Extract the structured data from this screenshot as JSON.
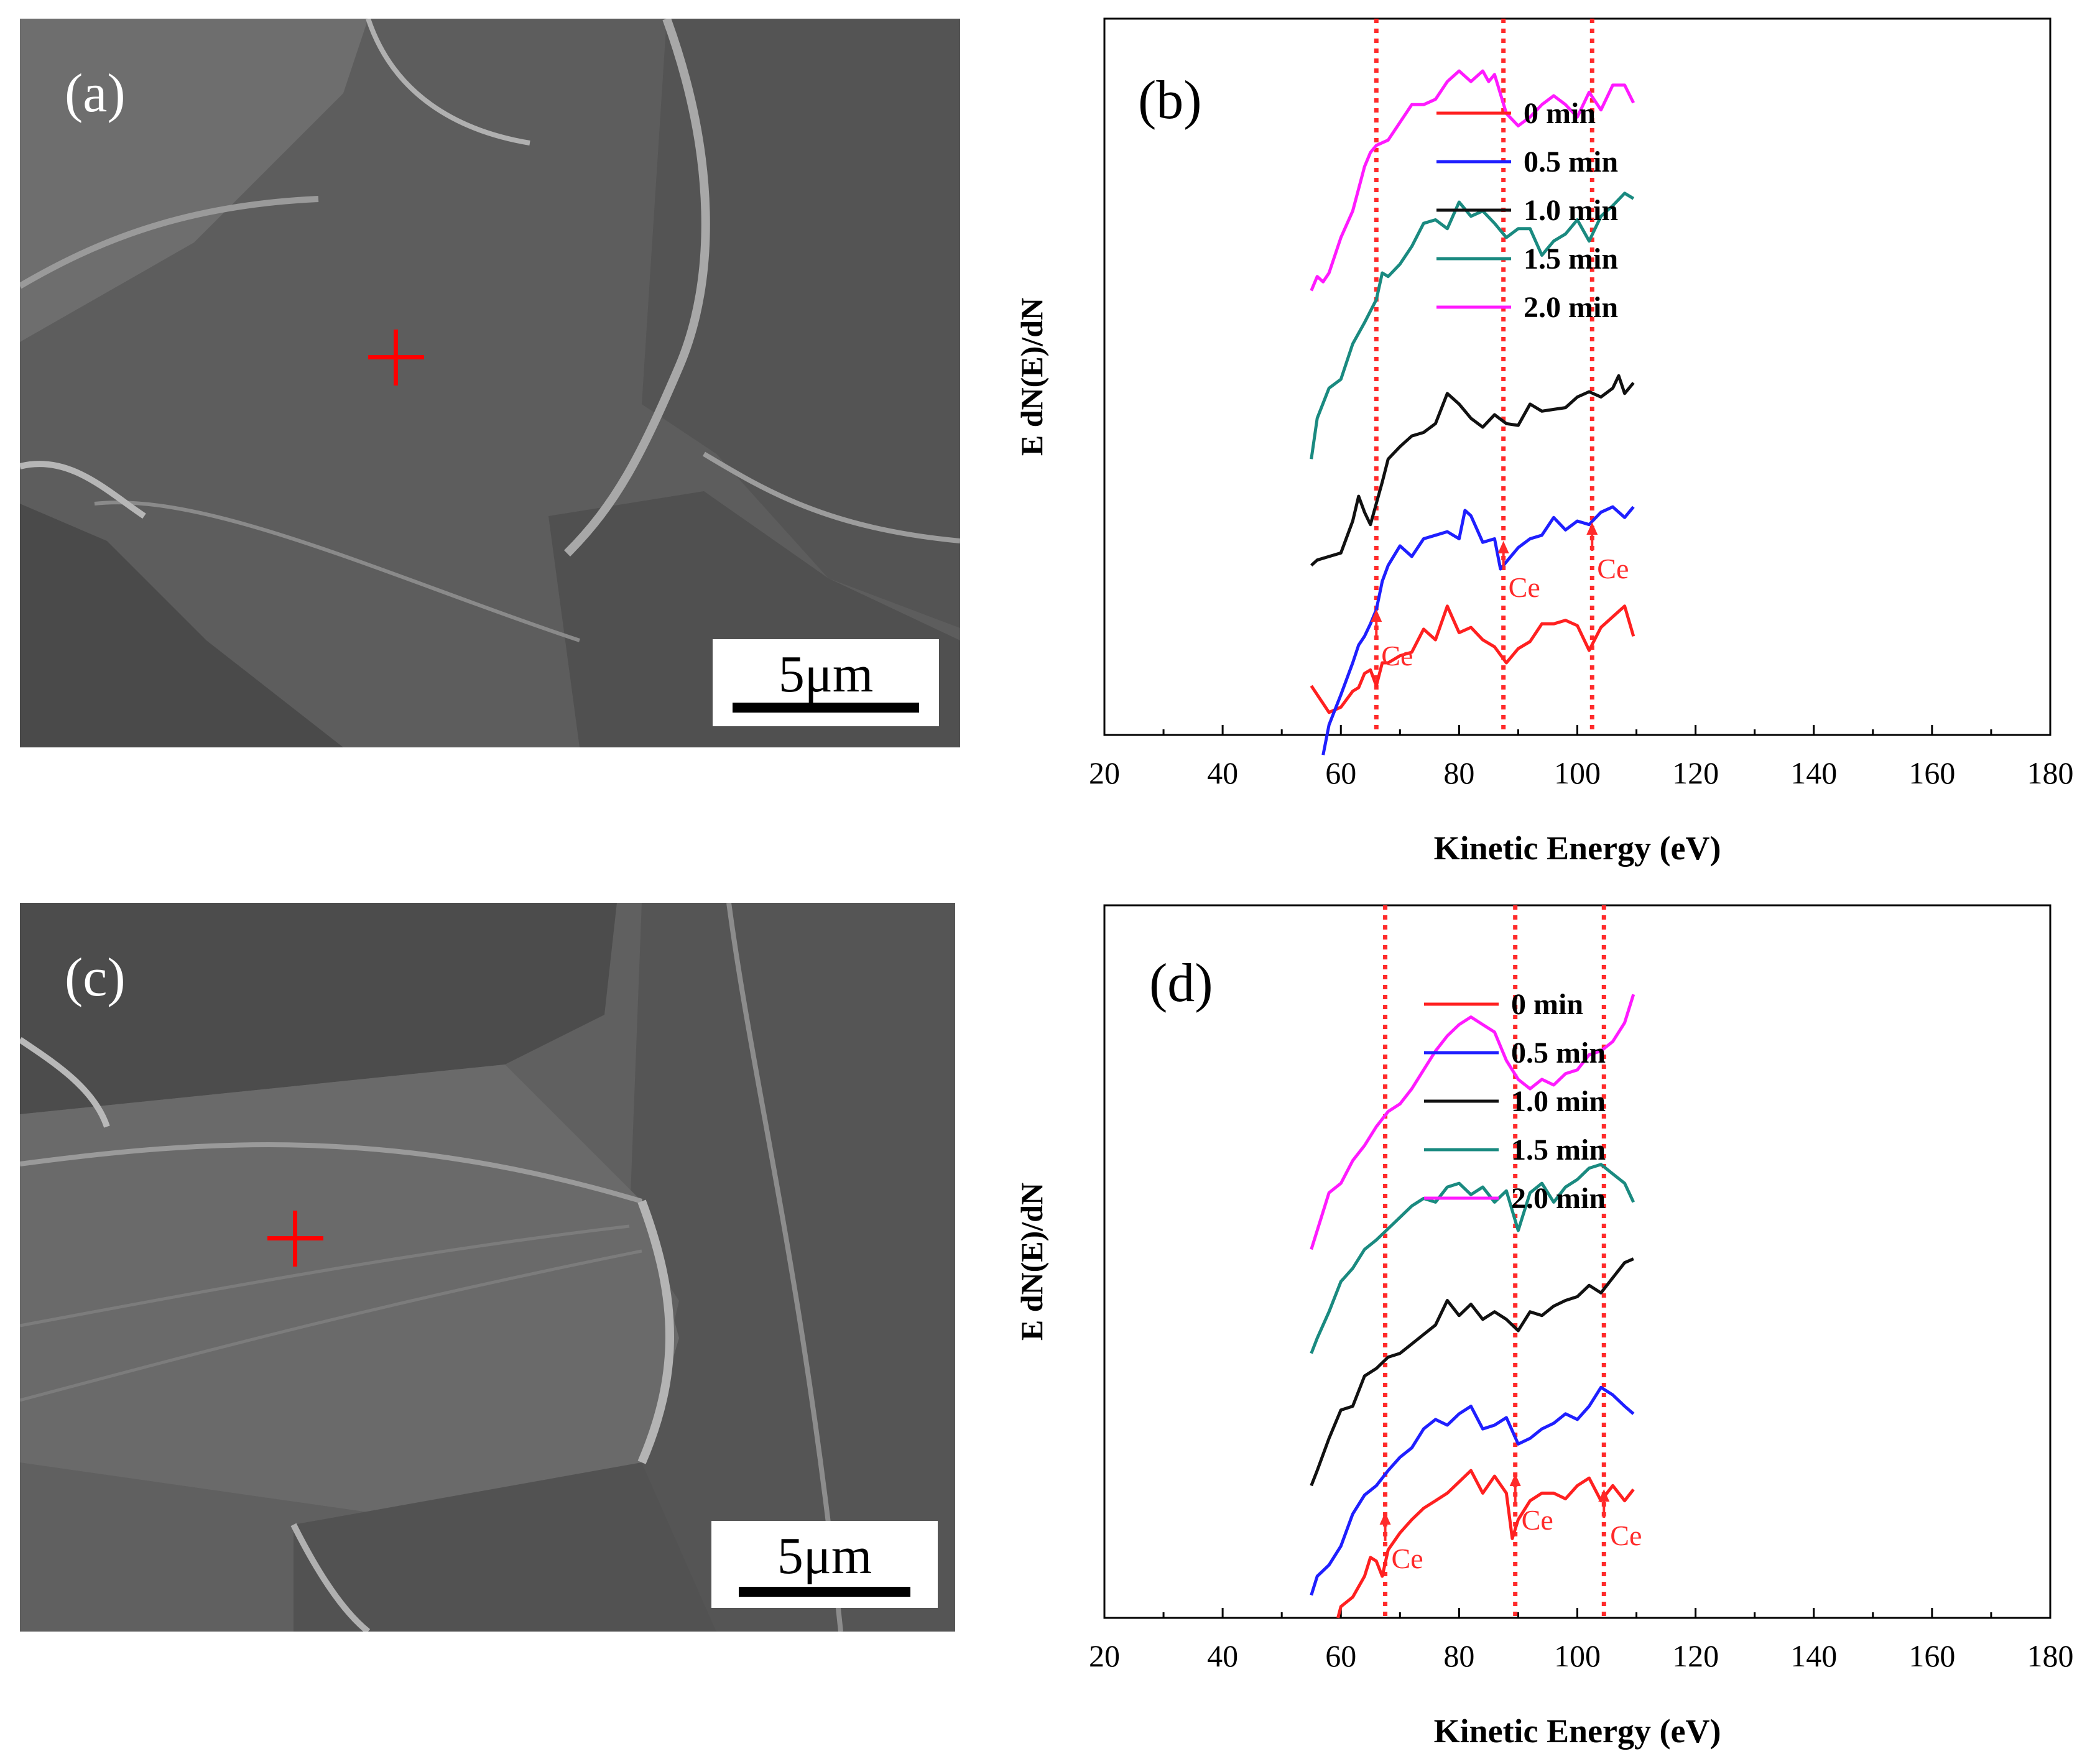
{
  "figure": {
    "sem_a": {
      "label": "(a)",
      "scalebar": "5μm"
    },
    "sem_c": {
      "label": "(c)",
      "scalebar": "5μm"
    }
  },
  "colors": {
    "red": "#ff2020",
    "blue": "#1f1fff",
    "black": "#111111",
    "teal": "#1a8a80",
    "magenta": "#ff1aff",
    "marker": "#ff2a2a"
  },
  "chart_data": [
    {
      "type": "line",
      "panel_label": "(b)",
      "xlabel": "Kinetic Energy (eV)",
      "ylabel": "E dN(E)/dN",
      "xlim": [
        20,
        180
      ],
      "xticks": [
        "20",
        "40",
        "60",
        "80",
        "100",
        "120",
        "140",
        "160",
        "180"
      ],
      "legend_position": "top-right",
      "markers": [
        66,
        87.5,
        102.5
      ],
      "marker_labels": [
        "Ce",
        "Ce",
        "Ce"
      ],
      "series": [
        {
          "name": "0  min",
          "color": "#ff2020",
          "x": [
            55,
            56,
            57,
            58,
            60,
            62,
            63,
            64,
            65,
            66,
            67,
            68,
            70,
            72,
            74,
            76,
            78,
            80,
            82,
            84,
            86,
            88,
            90,
            92,
            94,
            96,
            98,
            100,
            102,
            104,
            106,
            108,
            109.5
          ],
          "values": [
            0.27,
            0.22,
            0.17,
            0.12,
            0.15,
            0.24,
            0.26,
            0.34,
            0.36,
            0.27,
            0.4,
            0.4,
            0.44,
            0.46,
            0.59,
            0.53,
            0.72,
            0.57,
            0.6,
            0.53,
            0.49,
            0.4,
            0.48,
            0.52,
            0.62,
            0.62,
            0.64,
            0.61,
            0.47,
            0.6,
            0.66,
            0.72,
            0.55
          ]
        },
        {
          "name": "0.5 min",
          "color": "#1f1fff",
          "x": [
            57,
            58,
            60,
            62,
            63,
            64,
            65,
            66,
            67,
            68,
            70,
            72,
            74,
            76,
            78,
            80,
            81,
            82,
            84,
            86,
            87,
            88,
            90,
            92,
            94,
            96,
            98,
            100,
            102,
            104,
            106,
            108,
            109.5
          ],
          "values": [
            -0.12,
            0.05,
            0.22,
            0.4,
            0.5,
            0.55,
            0.62,
            0.7,
            0.86,
            0.95,
            1.06,
            1.0,
            1.1,
            1.12,
            1.14,
            1.1,
            1.26,
            1.23,
            1.08,
            1.1,
            0.93,
            0.97,
            1.05,
            1.1,
            1.12,
            1.22,
            1.15,
            1.2,
            1.18,
            1.25,
            1.28,
            1.22,
            1.28
          ]
        },
        {
          "name": "1.0 min",
          "color": "#111111",
          "x": [
            55,
            56,
            58,
            60,
            62,
            63,
            64,
            65,
            66,
            67,
            68,
            70,
            72,
            74,
            76,
            78,
            80,
            82,
            84,
            86,
            88,
            90,
            92,
            94,
            96,
            98,
            100,
            102,
            104,
            106,
            107,
            108,
            109.5
          ],
          "values": [
            0.95,
            0.98,
            1.0,
            1.02,
            1.2,
            1.34,
            1.25,
            1.18,
            1.3,
            1.42,
            1.55,
            1.62,
            1.68,
            1.7,
            1.75,
            1.92,
            1.86,
            1.78,
            1.73,
            1.8,
            1.75,
            1.74,
            1.86,
            1.82,
            1.83,
            1.84,
            1.9,
            1.93,
            1.9,
            1.95,
            2.02,
            1.92,
            1.98
          ]
        },
        {
          "name": "1.5 min",
          "color": "#1a8a80",
          "x": [
            55,
            56,
            58,
            60,
            62,
            64,
            66,
            67,
            68,
            70,
            72,
            74,
            76,
            78,
            80,
            82,
            84,
            86,
            88,
            90,
            92,
            94,
            96,
            98,
            100,
            102,
            104,
            106,
            108,
            109.5
          ],
          "values": [
            1.55,
            1.78,
            1.95,
            2.0,
            2.2,
            2.32,
            2.45,
            2.6,
            2.58,
            2.65,
            2.75,
            2.88,
            2.9,
            2.85,
            3.0,
            2.92,
            2.95,
            2.88,
            2.8,
            2.85,
            2.85,
            2.7,
            2.78,
            2.82,
            2.9,
            2.78,
            2.92,
            2.98,
            3.05,
            3.02
          ]
        },
        {
          "name": "2.0 min",
          "color": "#ff1aff",
          "x": [
            55,
            56,
            57,
            58,
            60,
            62,
            64,
            65,
            66,
            68,
            70,
            72,
            74,
            76,
            78,
            80,
            82,
            84,
            85,
            86,
            88,
            90,
            92,
            94,
            96,
            98,
            100,
            102,
            104,
            106,
            108,
            109.5
          ],
          "values": [
            2.5,
            2.58,
            2.55,
            2.6,
            2.8,
            2.95,
            3.2,
            3.28,
            3.32,
            3.35,
            3.45,
            3.55,
            3.55,
            3.58,
            3.68,
            3.74,
            3.68,
            3.74,
            3.68,
            3.72,
            3.5,
            3.43,
            3.48,
            3.55,
            3.6,
            3.55,
            3.48,
            3.62,
            3.52,
            3.66,
            3.66,
            3.56
          ]
        }
      ]
    },
    {
      "type": "line",
      "panel_label": "(d)",
      "xlabel": "Kinetic Energy (eV)",
      "ylabel": "E dN(E)/dN",
      "xlim": [
        20,
        180
      ],
      "xticks": [
        "20",
        "40",
        "60",
        "80",
        "100",
        "120",
        "140",
        "160",
        "180"
      ],
      "legend_position": "top-right",
      "markers": [
        67.5,
        89.5,
        104.5
      ],
      "marker_labels": [
        "Ce",
        "Ce",
        "Ce"
      ],
      "series": [
        {
          "name": "0  min",
          "color": "#ff2020",
          "x": [
            59.5,
            60,
            62,
            64,
            65,
            66,
            67,
            68,
            70,
            72,
            74,
            76,
            78,
            80,
            82,
            84,
            86,
            88,
            89,
            90,
            92,
            94,
            96,
            98,
            100,
            102,
            104,
            106,
            108,
            109.5
          ],
          "values": [
            0.0,
            0.06,
            0.11,
            0.22,
            0.32,
            0.3,
            0.22,
            0.36,
            0.45,
            0.52,
            0.58,
            0.62,
            0.66,
            0.72,
            0.78,
            0.66,
            0.75,
            0.66,
            0.42,
            0.52,
            0.62,
            0.66,
            0.66,
            0.63,
            0.7,
            0.74,
            0.62,
            0.7,
            0.62,
            0.68
          ]
        },
        {
          "name": "0.5 min",
          "color": "#1f1fff",
          "x": [
            55,
            56,
            58,
            60,
            62,
            64,
            66,
            68,
            70,
            72,
            74,
            76,
            78,
            80,
            82,
            84,
            86,
            88,
            90,
            92,
            94,
            96,
            98,
            100,
            102,
            104,
            106,
            108,
            109.5
          ],
          "values": [
            0.12,
            0.22,
            0.28,
            0.38,
            0.55,
            0.65,
            0.7,
            0.78,
            0.85,
            0.9,
            1.0,
            1.05,
            1.02,
            1.08,
            1.12,
            1.0,
            1.02,
            1.06,
            0.92,
            0.95,
            1.0,
            1.03,
            1.08,
            1.05,
            1.12,
            1.22,
            1.18,
            1.12,
            1.08
          ]
        },
        {
          "name": "1.0 min",
          "color": "#111111",
          "x": [
            55,
            56,
            58,
            60,
            62,
            64,
            66,
            68,
            70,
            72,
            74,
            76,
            78,
            80,
            82,
            84,
            86,
            88,
            90,
            92,
            94,
            96,
            98,
            100,
            102,
            104,
            106,
            108,
            109.5
          ],
          "values": [
            0.7,
            0.78,
            0.95,
            1.1,
            1.12,
            1.28,
            1.32,
            1.38,
            1.4,
            1.45,
            1.5,
            1.55,
            1.68,
            1.6,
            1.66,
            1.58,
            1.62,
            1.58,
            1.52,
            1.62,
            1.6,
            1.65,
            1.68,
            1.7,
            1.76,
            1.72,
            1.8,
            1.88,
            1.9
          ]
        },
        {
          "name": "1.5 min",
          "color": "#1a8a80",
          "x": [
            55,
            56,
            58,
            60,
            62,
            64,
            66,
            68,
            70,
            72,
            74,
            76,
            78,
            80,
            82,
            84,
            86,
            88,
            90,
            92,
            94,
            96,
            98,
            100,
            102,
            104,
            106,
            108,
            109.5
          ],
          "values": [
            1.4,
            1.48,
            1.62,
            1.78,
            1.85,
            1.95,
            2.0,
            2.06,
            2.12,
            2.18,
            2.22,
            2.2,
            2.28,
            2.3,
            2.24,
            2.28,
            2.2,
            2.26,
            2.05,
            2.25,
            2.3,
            2.2,
            2.28,
            2.32,
            2.38,
            2.4,
            2.35,
            2.3,
            2.2
          ]
        },
        {
          "name": "2.0 min",
          "color": "#ff1aff",
          "x": [
            55,
            56,
            58,
            60,
            62,
            64,
            66,
            68,
            70,
            72,
            74,
            76,
            78,
            80,
            82,
            84,
            86,
            88,
            90,
            92,
            94,
            96,
            98,
            100,
            102,
            104,
            106,
            108,
            109.5
          ],
          "values": [
            1.95,
            2.05,
            2.25,
            2.3,
            2.42,
            2.5,
            2.6,
            2.68,
            2.72,
            2.8,
            2.9,
            3.0,
            3.08,
            3.14,
            3.18,
            3.14,
            3.1,
            2.95,
            2.85,
            2.8,
            2.85,
            2.82,
            2.88,
            2.9,
            2.98,
            3.0,
            3.05,
            3.15,
            3.3
          ]
        }
      ]
    }
  ]
}
